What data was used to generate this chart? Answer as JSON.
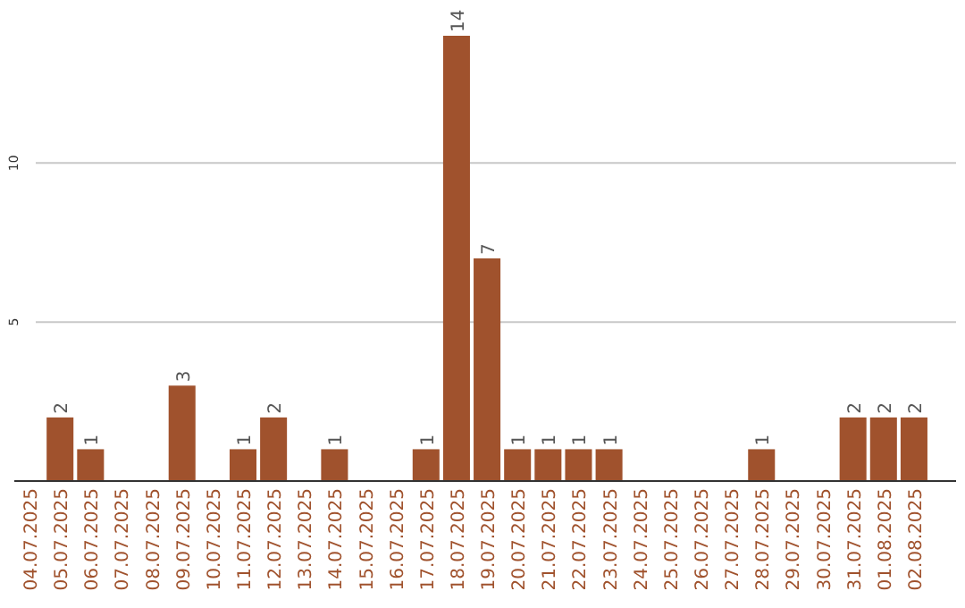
{
  "chart_data": {
    "type": "bar",
    "categories": [
      "04.07.2025",
      "05.07.2025",
      "06.07.2025",
      "07.07.2025",
      "08.07.2025",
      "09.07.2025",
      "10.07.2025",
      "11.07.2025",
      "12.07.2025",
      "13.07.2025",
      "14.07.2025",
      "15.07.2025",
      "16.07.2025",
      "17.07.2025",
      "18.07.2025",
      "19.07.2025",
      "20.07.2025",
      "21.07.2025",
      "22.07.2025",
      "23.07.2025",
      "24.07.2025",
      "25.07.2025",
      "26.07.2025",
      "27.07.2025",
      "28.07.2025",
      "29.07.2025",
      "30.07.2025",
      "31.07.2025",
      "01.08.2025",
      "02.08.2025"
    ],
    "values": [
      0,
      2,
      1,
      0,
      0,
      3,
      0,
      1,
      2,
      0,
      1,
      0,
      0,
      1,
      14,
      7,
      1,
      1,
      1,
      1,
      0,
      0,
      0,
      0,
      1,
      0,
      0,
      2,
      2,
      2
    ],
    "value_labels": [
      null,
      "2",
      "1",
      null,
      null,
      "3",
      null,
      "1",
      "2",
      null,
      "1",
      null,
      null,
      "1",
      "14",
      "7",
      "1",
      "1",
      "1",
      "1",
      null,
      null,
      null,
      null,
      "1",
      null,
      null,
      "2",
      "2",
      "2"
    ],
    "color": "#a0522d",
    "ylim": [
      0,
      14
    ],
    "yticks": [
      5,
      10
    ],
    "grid": "y"
  }
}
